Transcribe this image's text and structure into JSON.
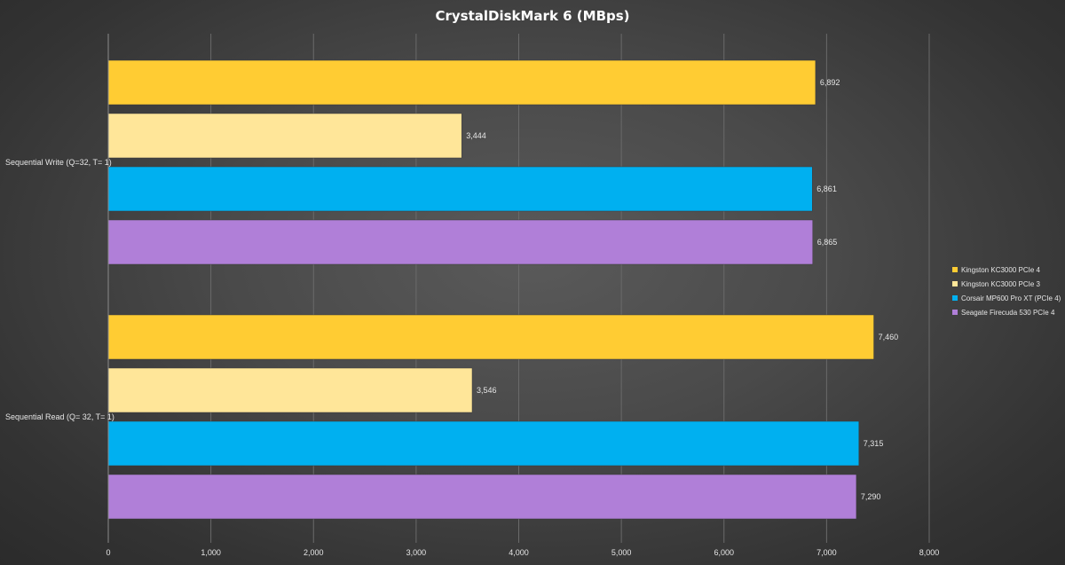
{
  "chart_data": {
    "type": "bar",
    "orientation": "horizontal",
    "title": "CrystalDiskMark  6 (MBps)",
    "xlabel": "",
    "ylabel": "",
    "xlim": [
      0,
      8000
    ],
    "x_ticks": [
      0,
      1000,
      2000,
      3000,
      4000,
      5000,
      6000,
      7000,
      8000
    ],
    "x_tick_labels": [
      "0",
      "1,000",
      "2,000",
      "3,000",
      "4,000",
      "5,000",
      "6,000",
      "7,000",
      "8,000"
    ],
    "grid": true,
    "legend_position": "right",
    "categories": [
      "Sequential Write (Q=32, T= 1)",
      "Sequential Read (Q= 32, T= 1)"
    ],
    "series": [
      {
        "name": "Kingston KC3000 PCIe 4",
        "color": "#FFCC33",
        "values": [
          6892,
          7460
        ],
        "labels": [
          "6,892",
          "7,460"
        ]
      },
      {
        "name": "Kingston KC3000 PCIe 3",
        "color": "#FFE699",
        "values": [
          3444,
          3546
        ],
        "labels": [
          "3,444",
          "3,546"
        ]
      },
      {
        "name": "Corsair MP600 Pro XT  (PCIe 4)",
        "color": "#00B0F0",
        "values": [
          6861,
          7315
        ],
        "labels": [
          "6,861",
          "7,315"
        ]
      },
      {
        "name": "Seagate Firecuda 530 PCIe 4",
        "color": "#B07FD8",
        "values": [
          6865,
          7290
        ],
        "labels": [
          "6,865",
          "7,290"
        ]
      }
    ]
  }
}
